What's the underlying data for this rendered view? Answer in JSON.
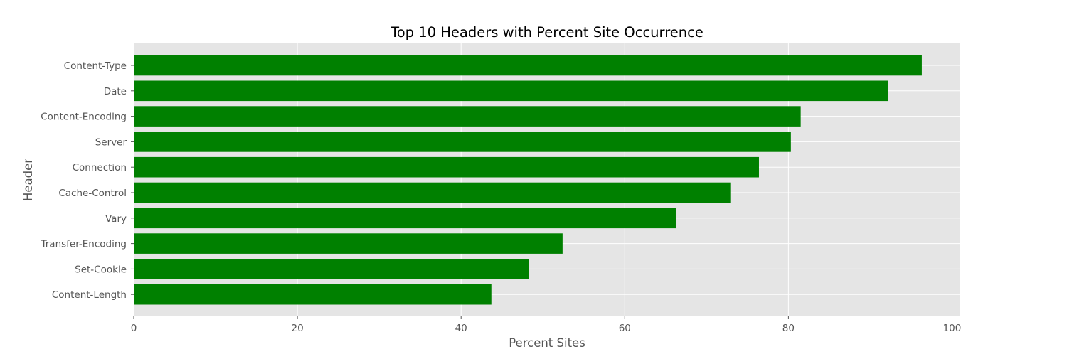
{
  "chart_data": {
    "type": "bar",
    "orientation": "horizontal",
    "title": "Top 10 Headers with Percent Site Occurrence",
    "xlabel": "Percent Sites",
    "ylabel": "Header",
    "categories": [
      "Content-Type",
      "Date",
      "Content-Encoding",
      "Server",
      "Connection",
      "Cache-Control",
      "Vary",
      "Transfer-Encoding",
      "Set-Cookie",
      "Content-Length"
    ],
    "values": [
      96.3,
      92.2,
      81.5,
      80.3,
      76.4,
      72.9,
      66.3,
      52.4,
      48.3,
      43.7
    ],
    "xlim": [
      0,
      101
    ],
    "xticks": [
      0,
      20,
      40,
      60,
      80,
      100
    ],
    "grid": true,
    "colors": {
      "bar": "#008000",
      "plot_background": "#e5e5e5",
      "grid": "#ffffff",
      "tick_text": "#555555",
      "title_text": "#000000"
    }
  }
}
